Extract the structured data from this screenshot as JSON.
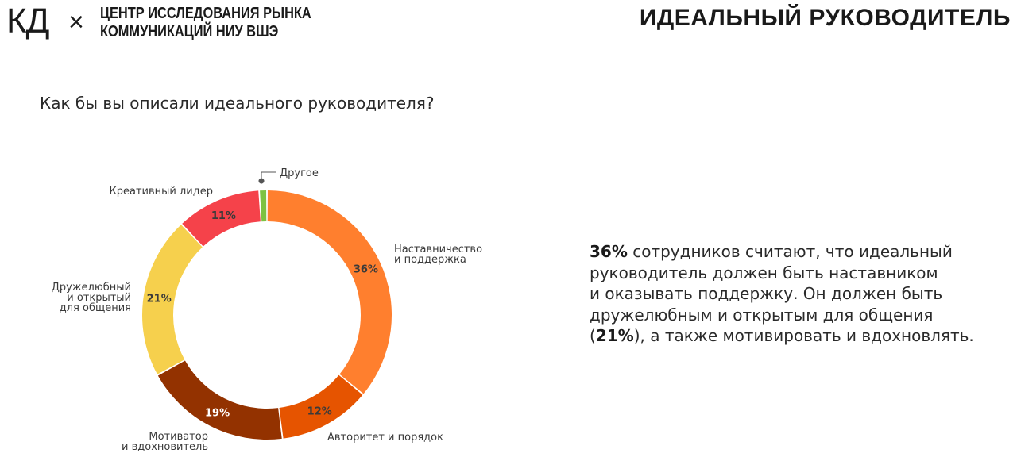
{
  "header": {
    "logo_kd": "КД",
    "logo_x": "×",
    "logo_line1": "ЦЕНТР ИССЛЕДОВАНИЯ РЫНКА",
    "logo_line2": "КОММУНИКАЦИЙ НИУ ВШЭ",
    "page_title": "ИДЕАЛЬНЫЙ РУКОВОДИТЕЛЬ"
  },
  "question": "Как бы вы описали идеального руководителя?",
  "summary": {
    "p1_bold": "36%",
    "p1_rest": " сотрудников считают, что идеальный",
    "line2": "руководитель должен быть наставником",
    "line3": "и оказывать поддержку. Он должен быть",
    "line4": "дружелюбным и открытым для общения",
    "line5_open": "(",
    "line5_bold": "21%",
    "line5_rest": "), а также мотивировать и вдохновлять."
  },
  "chart_data": {
    "type": "pie",
    "style": "donut",
    "title": "",
    "slices": [
      {
        "name": "Наставничество и поддержка",
        "label_lines": [
          "Наставничество",
          "и поддержка"
        ],
        "value": 36,
        "pct_label": "36%",
        "color": "#FF7F2E",
        "pct_color": "#3a3a3a"
      },
      {
        "name": "Авторитет и порядок",
        "label_lines": [
          "Авторитет и порядок"
        ],
        "value": 12,
        "pct_label": "12%",
        "color": "#E65400",
        "pct_color": "#3a3a3a"
      },
      {
        "name": "Мотиватор и вдохновитель",
        "label_lines": [
          "Мотиватор",
          "и вдохновитель"
        ],
        "value": 19,
        "pct_label": "19%",
        "color": "#933200",
        "pct_color": "#ffffff"
      },
      {
        "name": "Дружелюбный и открытый для общения",
        "label_lines": [
          "Дружелюбный",
          "и открытый",
          "для общения"
        ],
        "value": 21,
        "pct_label": "21%",
        "color": "#F6D04D",
        "pct_color": "#3a3a3a"
      },
      {
        "name": "Креативный лидер",
        "label_lines": [
          "Креативный лидер"
        ],
        "value": 11,
        "pct_label": "11%",
        "color": "#F5424A",
        "pct_color": "#3a3a3a"
      },
      {
        "name": "Другое",
        "label_lines": [
          "Другое"
        ],
        "value": 1,
        "pct_label": "",
        "color": "#7DC242",
        "pct_color": "#3a3a3a"
      }
    ]
  }
}
